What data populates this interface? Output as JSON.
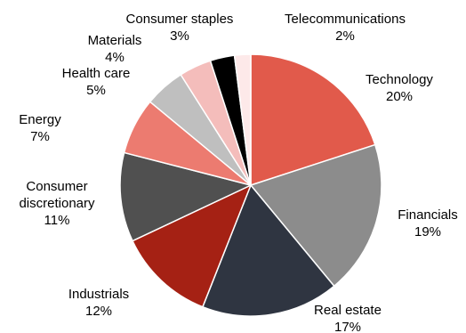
{
  "chart_data": {
    "type": "pie",
    "title": "",
    "legend": "none",
    "slices": [
      {
        "label": "Technology",
        "value": 20,
        "value_label": "20%",
        "color": "#e15a4b"
      },
      {
        "label": "Financials",
        "value": 19,
        "value_label": "19%",
        "color": "#8c8c8c"
      },
      {
        "label": "Real estate",
        "value": 17,
        "value_label": "17%",
        "color": "#2f3541"
      },
      {
        "label": "Industrials",
        "value": 12,
        "value_label": "12%",
        "color": "#a52114"
      },
      {
        "label": [
          "Consumer",
          "discretionary"
        ],
        "value": 11,
        "value_label": "11%",
        "color": "#505050"
      },
      {
        "label": "Energy",
        "value": 7,
        "value_label": "7%",
        "color": "#ec7b70"
      },
      {
        "label": "Health care",
        "value": 5,
        "value_label": "5%",
        "color": "#bfbfbf"
      },
      {
        "label": "Materials",
        "value": 4,
        "value_label": "4%",
        "color": "#f4bdbb"
      },
      {
        "label": "Consumer staples",
        "value": 3,
        "value_label": "3%",
        "color": "#000000"
      },
      {
        "label": "Telecommunications",
        "value": 2,
        "value_label": "2%",
        "color": "#fde9e9"
      }
    ]
  }
}
